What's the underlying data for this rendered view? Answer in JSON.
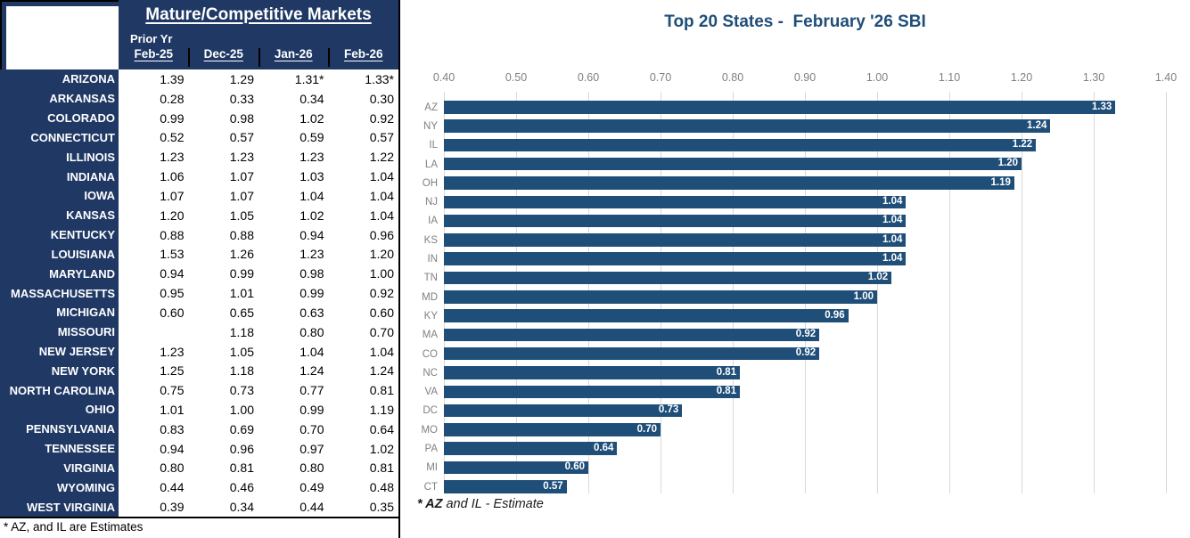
{
  "table": {
    "title": "Mature/Competitive Markets",
    "prior_yr_label": "Prior Yr",
    "columns": [
      "Feb-25",
      "Dec-25",
      "Jan-26",
      "Feb-26"
    ],
    "rows": [
      {
        "state": "ARIZONA",
        "values": [
          "1.39",
          "1.29",
          "1.31*",
          "1.33*"
        ]
      },
      {
        "state": "ARKANSAS",
        "values": [
          "0.28",
          "0.33",
          "0.34",
          "0.30"
        ]
      },
      {
        "state": "COLORADO",
        "values": [
          "0.99",
          "0.98",
          "1.02",
          "0.92"
        ]
      },
      {
        "state": "CONNECTICUT",
        "values": [
          "0.52",
          "0.57",
          "0.59",
          "0.57"
        ]
      },
      {
        "state": "ILLINOIS",
        "values": [
          "1.23",
          "1.23",
          "1.23",
          "1.22"
        ]
      },
      {
        "state": "INDIANA",
        "values": [
          "1.06",
          "1.07",
          "1.03",
          "1.04"
        ]
      },
      {
        "state": "IOWA",
        "values": [
          "1.07",
          "1.07",
          "1.04",
          "1.04"
        ]
      },
      {
        "state": "KANSAS",
        "values": [
          "1.20",
          "1.05",
          "1.02",
          "1.04"
        ]
      },
      {
        "state": "KENTUCKY",
        "values": [
          "0.88",
          "0.88",
          "0.94",
          "0.96"
        ]
      },
      {
        "state": "LOUISIANA",
        "values": [
          "1.53",
          "1.26",
          "1.23",
          "1.20"
        ]
      },
      {
        "state": "MARYLAND",
        "values": [
          "0.94",
          "0.99",
          "0.98",
          "1.00"
        ]
      },
      {
        "state": "MASSACHUSETTS",
        "values": [
          "0.95",
          "1.01",
          "0.99",
          "0.92"
        ]
      },
      {
        "state": "MICHIGAN",
        "values": [
          "0.60",
          "0.65",
          "0.63",
          "0.60"
        ]
      },
      {
        "state": "MISSOURI",
        "values": [
          "",
          "1.18",
          "0.80",
          "0.70"
        ]
      },
      {
        "state": "NEW JERSEY",
        "values": [
          "1.23",
          "1.05",
          "1.04",
          "1.04"
        ]
      },
      {
        "state": "NEW YORK",
        "values": [
          "1.25",
          "1.18",
          "1.24",
          "1.24"
        ]
      },
      {
        "state": "NORTH CAROLINA",
        "values": [
          "0.75",
          "0.73",
          "0.77",
          "0.81"
        ]
      },
      {
        "state": "OHIO",
        "values": [
          "1.01",
          "1.00",
          "0.99",
          "1.19"
        ]
      },
      {
        "state": "PENNSYLVANIA",
        "values": [
          "0.83",
          "0.69",
          "0.70",
          "0.64"
        ]
      },
      {
        "state": "TENNESSEE",
        "values": [
          "0.94",
          "0.96",
          "0.97",
          "1.02"
        ]
      },
      {
        "state": "VIRGINIA",
        "values": [
          "0.80",
          "0.81",
          "0.80",
          "0.81"
        ]
      },
      {
        "state": "WYOMING",
        "values": [
          "0.44",
          "0.46",
          "0.49",
          "0.48"
        ]
      },
      {
        "state": "WEST VIRGINIA",
        "values": [
          "0.39",
          "0.34",
          "0.44",
          "0.35"
        ]
      }
    ],
    "footnote": "* AZ, and IL are Estimates"
  },
  "chart": {
    "footnote_bold": "* AZ",
    "footnote_rest": "  and IL - Estimate"
  },
  "chart_data": {
    "type": "bar",
    "orientation": "horizontal",
    "title": "Top 20 States -  February '26 SBI",
    "categories": [
      "AZ",
      "NY",
      "IL",
      "LA",
      "OH",
      "NJ",
      "IA",
      "KS",
      "IN",
      "TN",
      "MD",
      "KY",
      "MA",
      "CO",
      "NC",
      "VA",
      "DC",
      "MO",
      "PA",
      "MI",
      "CT"
    ],
    "values": [
      1.33,
      1.24,
      1.22,
      1.2,
      1.19,
      1.04,
      1.04,
      1.04,
      1.04,
      1.02,
      1.0,
      0.96,
      0.92,
      0.92,
      0.81,
      0.81,
      0.73,
      0.7,
      0.64,
      0.6,
      0.57
    ],
    "xlim": [
      0.4,
      1.4
    ],
    "xticks": [
      "0.40",
      "0.50",
      "0.60",
      "0.70",
      "0.80",
      "0.90",
      "1.00",
      "1.10",
      "1.20",
      "1.30",
      "1.40"
    ],
    "xlabel": "",
    "ylabel": "",
    "grid": true,
    "axis_position": "top",
    "value_label_position": "inside-end",
    "legend": "none"
  },
  "colors": {
    "table_navy": "#1F3864",
    "bar_blue": "#1F4E79",
    "title_blue": "#1F4E79",
    "axis_gray": "#808080",
    "gridline_gray": "#D9D9D9",
    "value_label_white": "#FFFFFF"
  }
}
